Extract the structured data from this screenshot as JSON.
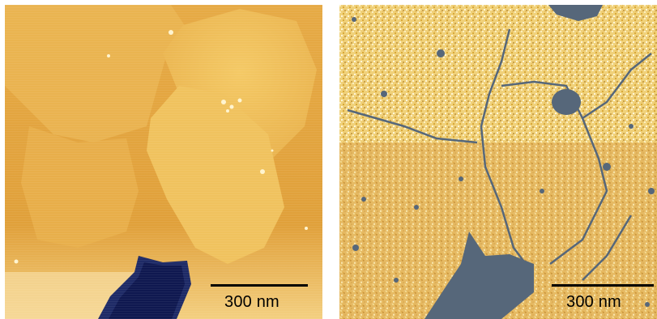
{
  "panels": [
    {
      "id": "left",
      "description_name": "afm-topography",
      "scale_bar": {
        "label": "300 nm"
      }
    },
    {
      "id": "right",
      "description_name": "afm-phase",
      "scale_bar": {
        "label": "300 nm"
      }
    }
  ],
  "colors": {
    "background_orange": "#e2a23c",
    "domain_light": "#f1c35d",
    "dark_hole": "#1e2a66",
    "phase_yellow": "#f3d67e",
    "phase_gray": "#56677a",
    "scale_bar": "#000000"
  }
}
